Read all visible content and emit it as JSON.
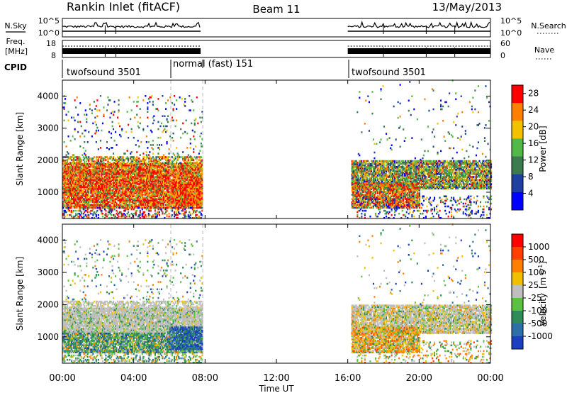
{
  "header": {
    "title": "Rankin Inlet (fitACF)",
    "beam": "Beam 11",
    "date": "13/May/2013"
  },
  "panels": {
    "nsky": {
      "label": "N.Sky",
      "ticks": [
        "10^5",
        "10^0"
      ]
    },
    "nsearch": {
      "label": "N.Search",
      "ticks": [
        "10^5",
        "10^0"
      ]
    },
    "freq": {
      "label_top": "Freq.",
      "label_unit": "[MHz]",
      "ticks": [
        "18",
        "8"
      ]
    },
    "nave": {
      "label": "Nave",
      "ticks": [
        "60",
        "0"
      ]
    },
    "cpid": {
      "label": "CPID"
    }
  },
  "chart_data": [
    {
      "type": "line",
      "title": "N.Sky / N.Search noise",
      "yscale": "log",
      "ylim": [
        1,
        100000
      ],
      "x_units": "hours UT",
      "segments": [
        [
          0,
          7.75
        ],
        [
          16,
          24
        ]
      ]
    },
    {
      "type": "line",
      "title": "Freq. / Nave",
      "freq_ylim": [
        8,
        18
      ],
      "nave_ylim": [
        0,
        60
      ],
      "segments": [
        [
          0,
          7.75
        ],
        [
          16,
          24
        ]
      ]
    },
    {
      "type": "table",
      "title": "CPID",
      "programs": [
        {
          "name": "twofsound 3501",
          "start": 0,
          "end": 6
        },
        {
          "name": "normal (fast) 151",
          "start": 6,
          "end": 7.75
        },
        {
          "name": "twofsound 3501",
          "start": 16,
          "end": 24
        }
      ]
    },
    {
      "type": "heatmap",
      "ylabel": "Slant Range [km]",
      "yticks": [
        1000,
        2000,
        3000,
        4000
      ],
      "ylim": [
        180,
        4500
      ],
      "xlim": [
        0,
        24
      ],
      "colorbar": {
        "label": "Power [dB]",
        "ticks": [
          4,
          8,
          12,
          16,
          20,
          24,
          28
        ],
        "range": [
          0,
          30
        ],
        "colors": [
          "#0000ff",
          "#2040a0",
          "#3c7a50",
          "#52b848",
          "#f2c200",
          "#ff8000",
          "#ff0000"
        ]
      }
    },
    {
      "type": "heatmap",
      "ylabel": "Slant Range [km]",
      "yticks": [
        1000,
        2000,
        3000,
        4000
      ],
      "ylim": [
        180,
        4500
      ],
      "xlim": [
        0,
        24
      ],
      "colorbar": {
        "label": "Velocity",
        "unit": "[m s",
        "unit_sup": "-1",
        "ticks": [
          "1000",
          "500",
          "100",
          "25",
          "-25",
          "-100",
          "-500",
          "-1000"
        ],
        "colors": [
          "#1a3fbf",
          "#2e6fa8",
          "#2f8b58",
          "#5dc040",
          "#bfbfbf",
          "#f0c000",
          "#ff8000",
          "#ff4000",
          "#ff0000"
        ]
      }
    }
  ],
  "xaxis": {
    "label": "Time UT",
    "ticks": [
      "00:00",
      "04:00",
      "08:00",
      "12:00",
      "16:00",
      "20:00",
      "00:00"
    ]
  }
}
